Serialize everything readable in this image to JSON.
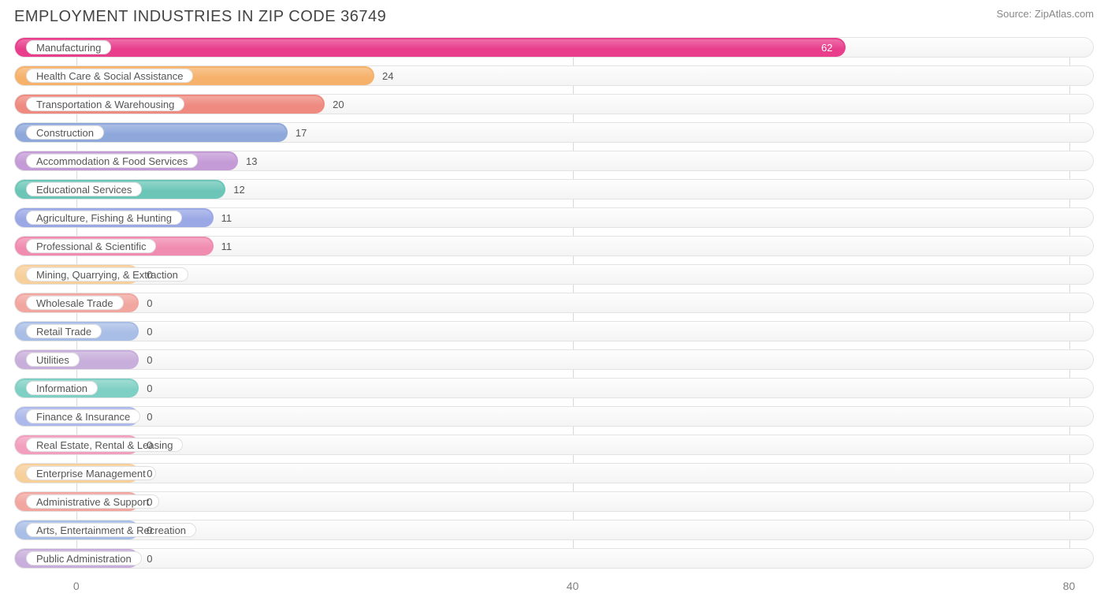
{
  "header": {
    "title": "EMPLOYMENT INDUSTRIES IN ZIP CODE 36749",
    "source": "Source: ZipAtlas.com"
  },
  "chart": {
    "type": "bar-horizontal",
    "x_min": -5,
    "x_max": 82,
    "ticks": [
      0,
      40,
      80
    ],
    "track_border": "#e3e3e3",
    "track_bg_top": "#fdfdfd",
    "track_bg_bottom": "#f4f4f4",
    "grid_color": "#d8d8d8",
    "min_fill_value": 5,
    "bars": [
      {
        "label": "Manufacturing",
        "value": 62,
        "color": "#e83e8c",
        "value_inside": true
      },
      {
        "label": "Health Care & Social Assistance",
        "value": 24,
        "color": "#f6b26b",
        "value_inside": false
      },
      {
        "label": "Transportation & Warehousing",
        "value": 20,
        "color": "#ef8a80",
        "value_inside": false
      },
      {
        "label": "Construction",
        "value": 17,
        "color": "#8fa8dc",
        "value_inside": false
      },
      {
        "label": "Accommodation & Food Services",
        "value": 13,
        "color": "#c49bd6",
        "value_inside": false
      },
      {
        "label": "Educational Services",
        "value": 12,
        "color": "#6cc6b8",
        "value_inside": false
      },
      {
        "label": "Agriculture, Fishing & Hunting",
        "value": 11,
        "color": "#9aa8e6",
        "value_inside": false
      },
      {
        "label": "Professional & Scientific",
        "value": 11,
        "color": "#f08cb0",
        "value_inside": false
      },
      {
        "label": "Mining, Quarrying, & Extraction",
        "value": 0,
        "color": "#f7cf9a",
        "value_inside": false
      },
      {
        "label": "Wholesale Trade",
        "value": 0,
        "color": "#f2a6a0",
        "value_inside": false
      },
      {
        "label": "Retail Trade",
        "value": 0,
        "color": "#a9bee6",
        "value_inside": false
      },
      {
        "label": "Utilities",
        "value": 0,
        "color": "#c8aedb",
        "value_inside": false
      },
      {
        "label": "Information",
        "value": 0,
        "color": "#7fd0c4",
        "value_inside": false
      },
      {
        "label": "Finance & Insurance",
        "value": 0,
        "color": "#adb9ea",
        "value_inside": false
      },
      {
        "label": "Real Estate, Rental & Leasing",
        "value": 0,
        "color": "#f29ebd",
        "value_inside": false
      },
      {
        "label": "Enterprise Management",
        "value": 0,
        "color": "#f7cf9a",
        "value_inside": false
      },
      {
        "label": "Administrative & Support",
        "value": 0,
        "color": "#f2a6a0",
        "value_inside": false
      },
      {
        "label": "Arts, Entertainment & Recreation",
        "value": 0,
        "color": "#a9bee6",
        "value_inside": false
      },
      {
        "label": "Public Administration",
        "value": 0,
        "color": "#c8aedb",
        "value_inside": false
      }
    ]
  }
}
